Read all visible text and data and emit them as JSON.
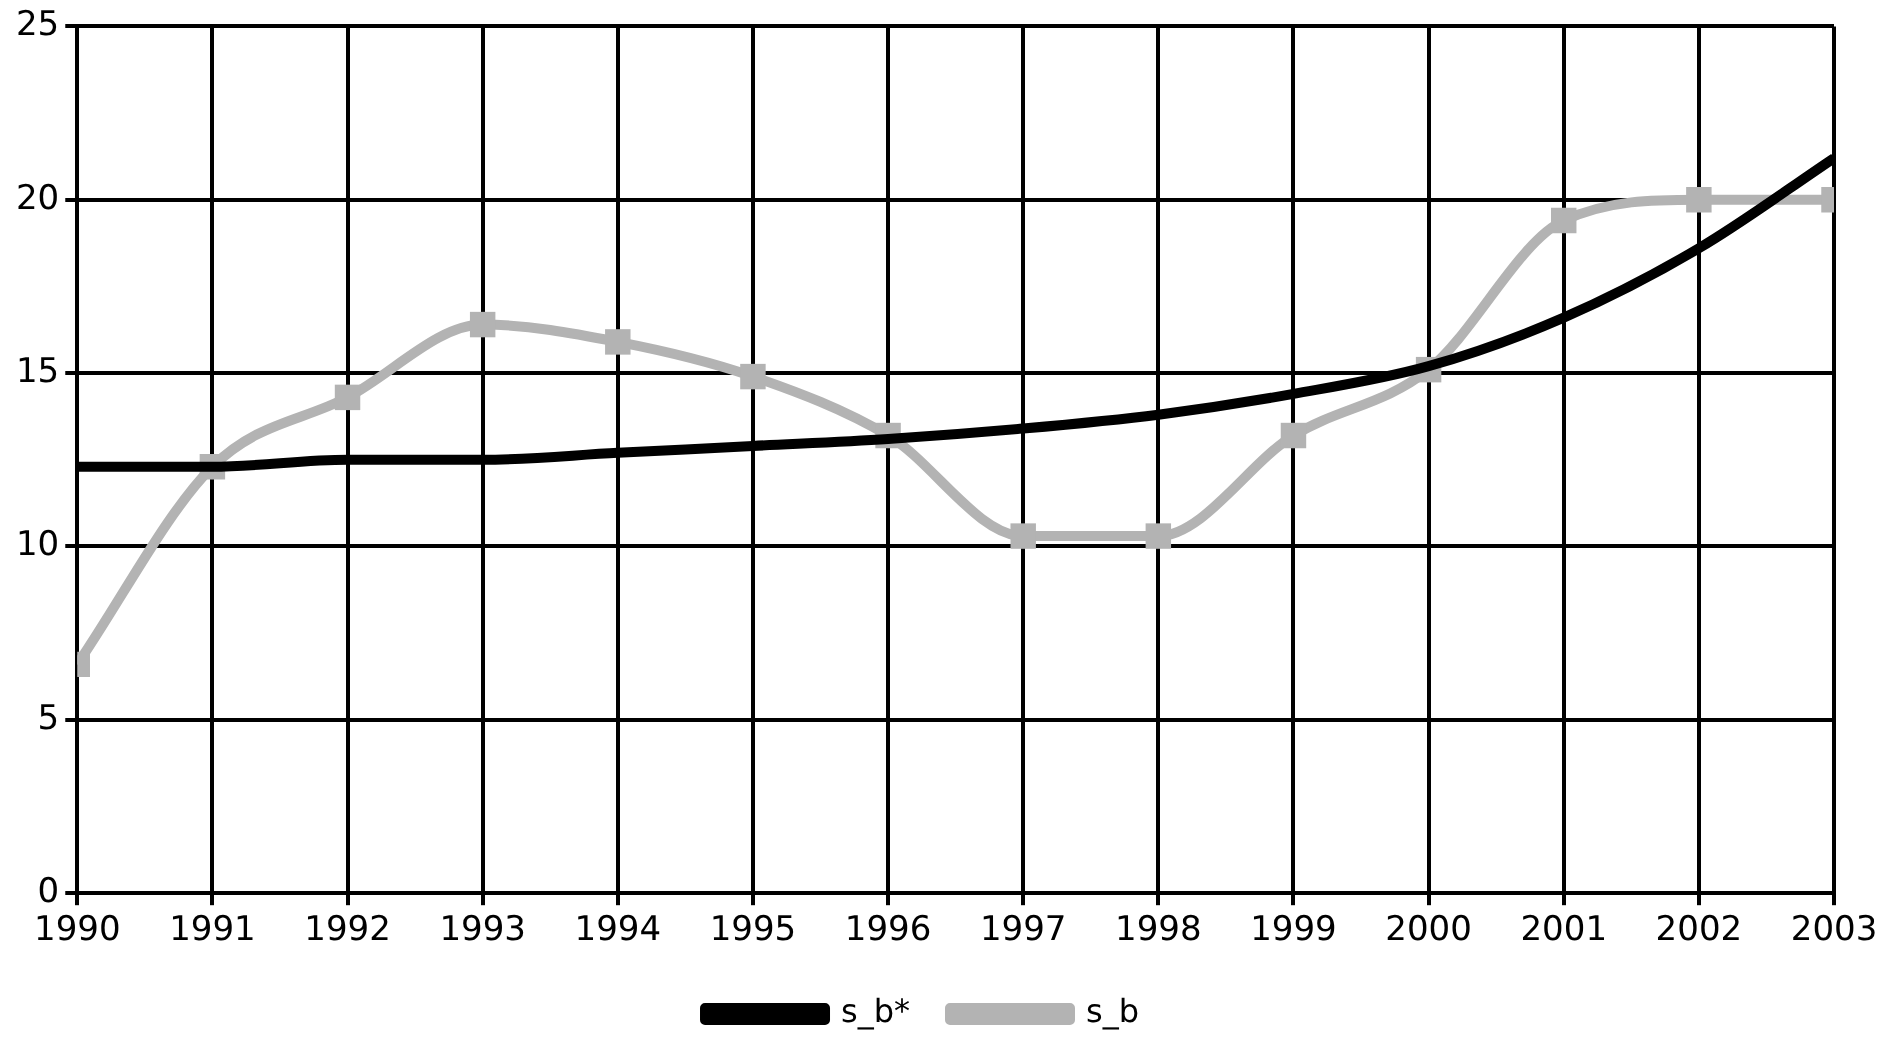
{
  "chart_data": {
    "type": "line",
    "x": [
      1990,
      1991,
      1992,
      1993,
      1994,
      1995,
      1996,
      1997,
      1998,
      1999,
      2000,
      2001,
      2002,
      2003
    ],
    "series": [
      {
        "name": "s_b*",
        "color": "#000000",
        "marker": "none",
        "values": [
          12.3,
          12.3,
          12.5,
          12.5,
          12.7,
          12.9,
          13.1,
          13.4,
          13.8,
          14.4,
          15.2,
          16.6,
          18.6,
          21.2
        ]
      },
      {
        "name": "s_b",
        "color": "#b3b3b3",
        "marker": "square",
        "values": [
          6.6,
          12.3,
          14.3,
          16.4,
          15.9,
          14.9,
          13.2,
          10.3,
          10.3,
          13.2,
          15.1,
          19.4,
          20.0,
          20.0
        ]
      }
    ],
    "xlim": [
      1990,
      2003
    ],
    "xticks": [
      1990,
      1991,
      1992,
      1993,
      1994,
      1995,
      1996,
      1997,
      1998,
      1999,
      2000,
      2001,
      2002,
      2003
    ],
    "ylim": [
      0,
      25
    ],
    "yticks": [
      0,
      5,
      10,
      15,
      20,
      25
    ],
    "grid": true,
    "legend": "bottom"
  }
}
